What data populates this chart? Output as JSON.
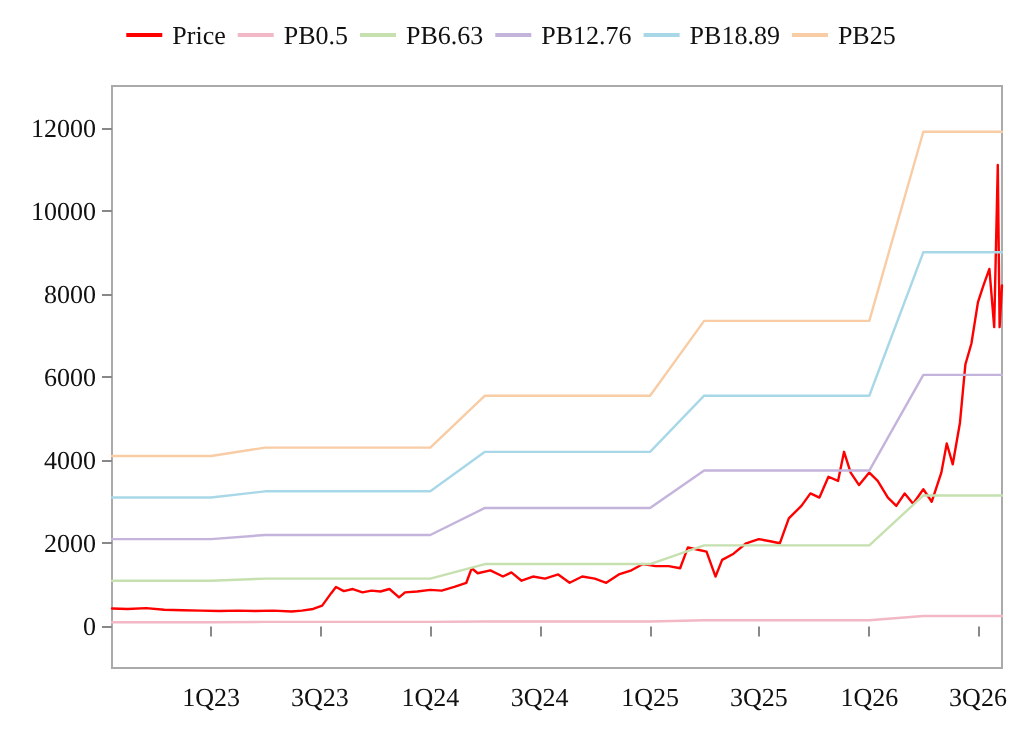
{
  "chart_data": {
    "type": "line",
    "x": [
      "2022-07-20",
      "2022-08-15",
      "2022-09-15",
      "2022-10-15",
      "2022-11-15",
      "2022-12-15",
      "2023-01-15",
      "2023-02-15",
      "2023-03-15",
      "2023-04-15",
      "2023-05-15",
      "2023-06-01",
      "2023-06-20",
      "2023-07-05",
      "2023-07-20",
      "2023-07-28",
      "2023-08-10",
      "2023-08-25",
      "2023-09-10",
      "2023-09-25",
      "2023-10-10",
      "2023-10-25",
      "2023-11-10",
      "2023-11-20",
      "2023-12-10",
      "2024-01-01",
      "2024-01-20",
      "2024-02-10",
      "2024-03-01",
      "2024-03-10",
      "2024-03-20",
      "2024-04-10",
      "2024-05-01",
      "2024-05-15",
      "2024-06-01",
      "2024-06-20",
      "2024-07-10",
      "2024-08-01",
      "2024-08-20",
      "2024-09-10",
      "2024-10-01",
      "2024-10-20",
      "2024-11-10",
      "2024-12-01",
      "2024-12-20",
      "2025-01-10",
      "2025-02-01",
      "2025-02-20",
      "2025-03-05",
      "2025-03-20",
      "2025-04-05",
      "2025-04-20",
      "2025-05-01",
      "2025-05-20",
      "2025-06-10",
      "2025-07-01",
      "2025-07-20",
      "2025-08-05",
      "2025-08-20",
      "2025-09-10",
      "2025-09-25",
      "2025-10-10",
      "2025-10-25",
      "2025-11-10",
      "2025-11-20",
      "2025-12-01",
      "2025-12-15",
      "2026-01-01",
      "2026-01-15",
      "2026-02-01",
      "2026-02-15",
      "2026-03-01",
      "2026-03-15",
      "2026-04-01",
      "2026-04-15",
      "2026-05-01",
      "2026-05-10",
      "2026-05-20",
      "2026-06-01",
      "2026-06-10",
      "2026-06-20",
      "2026-07-01",
      "2026-07-10",
      "2026-07-20",
      "2026-07-28",
      "2026-08-03",
      "2026-08-06",
      "2026-08-10"
    ],
    "series": [
      {
        "name": "Price",
        "color": "#ff0000",
        "values": [
          430,
          420,
          440,
          400,
          390,
          380,
          370,
          380,
          370,
          380,
          360,
          380,
          420,
          500,
          800,
          950,
          850,
          900,
          820,
          860,
          840,
          900,
          700,
          820,
          840,
          880,
          860,
          950,
          1050,
          1400,
          1280,
          1350,
          1200,
          1300,
          1100,
          1200,
          1150,
          1250,
          1050,
          1200,
          1150,
          1050,
          1250,
          1350,
          1500,
          1450,
          1450,
          1400,
          1900,
          1850,
          1800,
          1200,
          1600,
          1750,
          2000,
          2100,
          2050,
          2000,
          2600,
          2900,
          3200,
          3100,
          3600,
          3500,
          4200,
          3700,
          3400,
          3700,
          3500,
          3100,
          2900,
          3200,
          2950,
          3300,
          3000,
          3700,
          4400,
          3900,
          4900,
          6300,
          6800,
          7800,
          8200,
          8600,
          7200,
          11100,
          7200,
          8200
        ]
      },
      {
        "name": "PB0.5",
        "color": "#f2b8c6",
        "x": [
          "2022-07-20",
          "2023-01-01",
          "2023-04-01",
          "2024-01-01",
          "2024-04-01",
          "2025-01-01",
          "2025-04-01",
          "2026-01-01",
          "2026-04-01",
          "2026-08-10"
        ],
        "values": [
          100,
          100,
          110,
          110,
          120,
          120,
          150,
          150,
          250,
          250
        ]
      },
      {
        "name": "PB6.63",
        "color": "#c6e0b0",
        "x": [
          "2022-07-20",
          "2023-01-01",
          "2023-04-01",
          "2024-01-01",
          "2024-04-01",
          "2025-01-01",
          "2025-04-01",
          "2026-01-01",
          "2026-04-01",
          "2026-08-10"
        ],
        "values": [
          1100,
          1100,
          1150,
          1150,
          1500,
          1500,
          1950,
          1950,
          3150,
          3150
        ]
      },
      {
        "name": "PB12.76",
        "color": "#c4b4dc",
        "x": [
          "2022-07-20",
          "2023-01-01",
          "2023-04-01",
          "2024-01-01",
          "2024-04-01",
          "2025-01-01",
          "2025-04-01",
          "2026-01-01",
          "2026-04-01",
          "2026-08-10"
        ],
        "values": [
          2100,
          2100,
          2200,
          2200,
          2850,
          2850,
          3750,
          3750,
          6050,
          6050
        ]
      },
      {
        "name": "PB18.89",
        "color": "#a8d8e8",
        "x": [
          "2022-07-20",
          "2023-01-01",
          "2023-04-01",
          "2024-01-01",
          "2024-04-01",
          "2025-01-01",
          "2025-04-01",
          "2026-01-01",
          "2026-04-01",
          "2026-08-10"
        ],
        "values": [
          3100,
          3100,
          3250,
          3250,
          4200,
          4200,
          5550,
          5550,
          9000,
          9000
        ]
      },
      {
        "name": "PB25",
        "color": "#f8cca4",
        "x": [
          "2022-07-20",
          "2023-01-01",
          "2023-04-01",
          "2024-01-01",
          "2024-04-01",
          "2025-01-01",
          "2025-04-01",
          "2026-01-01",
          "2026-04-01",
          "2026-08-10"
        ],
        "values": [
          4100,
          4100,
          4300,
          4300,
          5550,
          5550,
          7350,
          7350,
          11900,
          11900
        ]
      }
    ],
    "xlim": [
      "2022-07-20",
      "2026-08-10"
    ],
    "xticks": [
      {
        "value": "2023-01-01",
        "label": "1Q23"
      },
      {
        "value": "2023-07-01",
        "label": "3Q23"
      },
      {
        "value": "2024-01-01",
        "label": "1Q24"
      },
      {
        "value": "2024-07-01",
        "label": "3Q24"
      },
      {
        "value": "2025-01-01",
        "label": "1Q25"
      },
      {
        "value": "2025-07-01",
        "label": "3Q25"
      },
      {
        "value": "2026-01-01",
        "label": "1Q26"
      },
      {
        "value": "2026-07-01",
        "label": "3Q26"
      }
    ],
    "ylim": [
      -1000,
      13000
    ],
    "yticks": [
      0,
      2000,
      4000,
      6000,
      8000,
      10000,
      12000
    ],
    "legend": "top",
    "grid": false,
    "marker": "none",
    "line_style": "solid"
  }
}
